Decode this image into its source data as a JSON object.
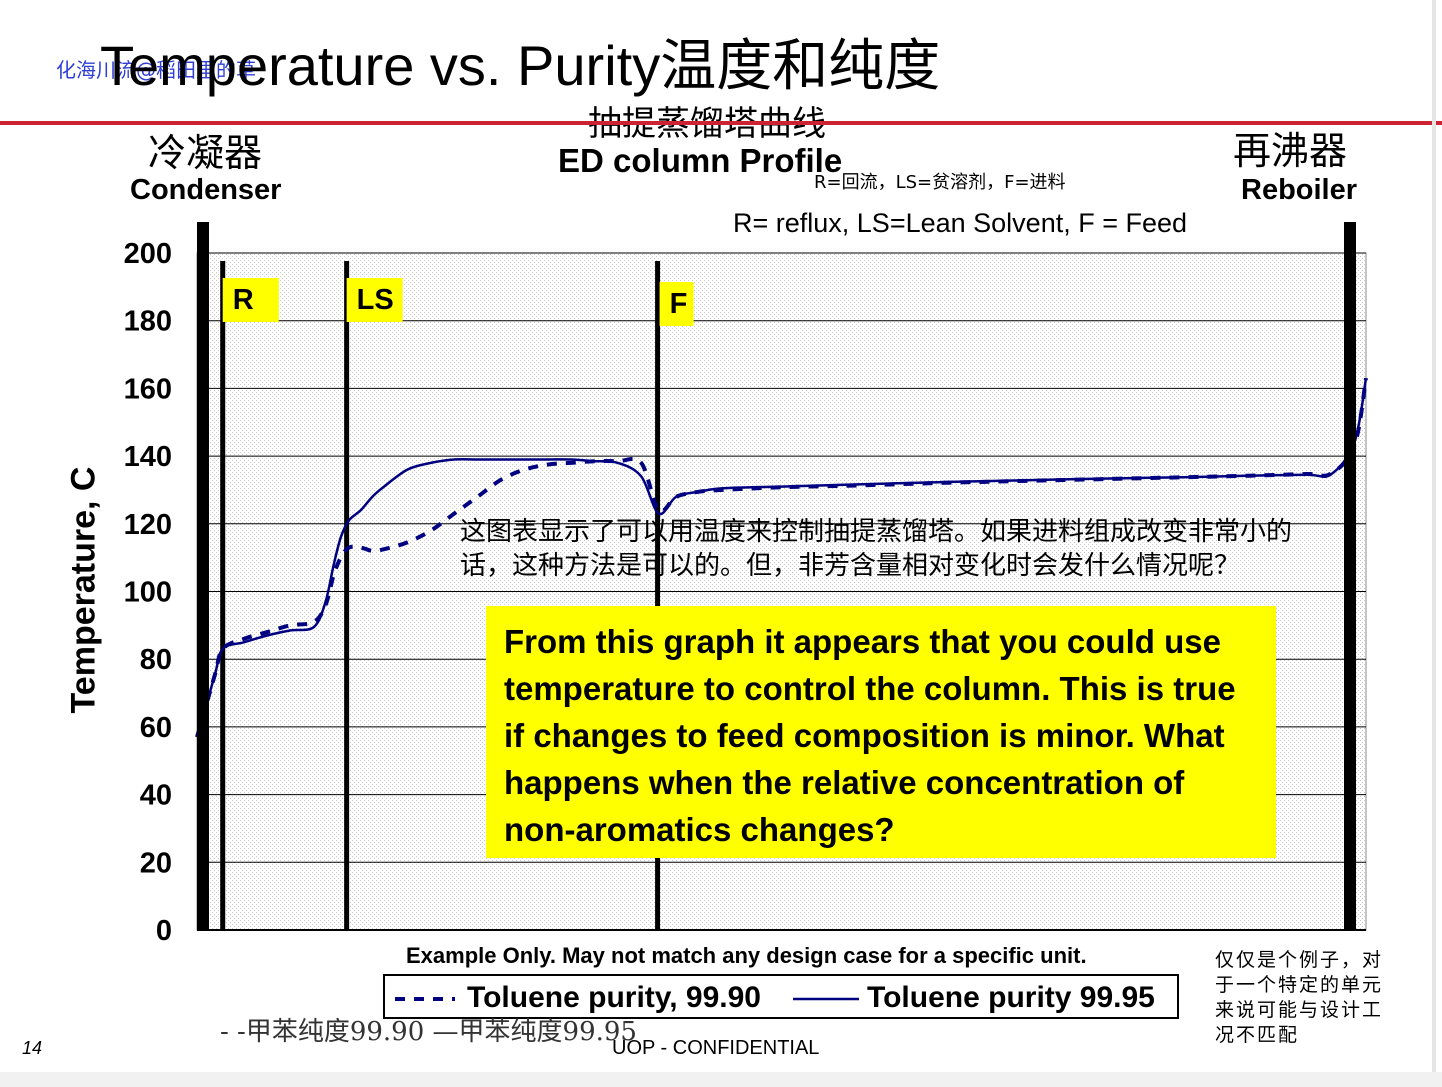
{
  "slide": {
    "watermark": "化海川流@稻田里的草",
    "title": "Temperature vs. Purity温度和纯度",
    "title_cn": "抽提蒸馏塔曲线",
    "page_number": "14",
    "confidential": "UOP - CONFIDENTIAL",
    "accent_color": "#cc2233"
  },
  "annotations": {
    "condenser_cn": "冷凝器",
    "condenser": "Condenser",
    "reboiler_cn": "再沸器",
    "reboiler": "Reboiler",
    "abbr_cn": "R=回流，LS=贫溶剂，F=进料",
    "abbr_en": "R= reflux, LS=Lean Solvent, F = Feed",
    "note_cn": "这图表显示了可以用温度来控制抽提蒸馏塔。如果进料组成改变非常小的话，这种方法是可以的。但，非芳含量相对变化时会发什么情况呢？",
    "callout": "From this graph it appears that you could use temperature to control the column. This is true if changes to feed composition is minor. What happens when the relative concentration of non-aromatics changes?",
    "callout_color": "#ffff00",
    "example": "Example Only. May not match any design case for a specific unit.",
    "legend_cn": "- -甲苯纯度99.90 —甲苯纯度99.95",
    "side_note": "仅仅是个例子，对于一个特定的单元来说可能与设计工况不匹配"
  },
  "chart_data": {
    "type": "line",
    "title": "ED column Profile",
    "ylabel": "Temperature, C",
    "xlabel": "",
    "ylim": [
      0,
      200
    ],
    "yticks": [
      0,
      20,
      40,
      60,
      80,
      100,
      120,
      140,
      160,
      180,
      200
    ],
    "xlim": [
      0,
      100
    ],
    "grid": "horizontal",
    "legend_position": "bottom",
    "line_color": "#000080",
    "markers": [
      {
        "label": "R",
        "x": 2.2
      },
      {
        "label": "LS",
        "x": 12.8
      },
      {
        "label": "F",
        "x": 39.4
      }
    ],
    "series": [
      {
        "name": "Toluene purity, 99.90",
        "style": "dashed",
        "x": [
          0,
          1.5,
          2.2,
          4,
          6,
          8,
          10,
          11,
          11.7,
          12.3,
          13,
          14,
          15,
          16,
          18,
          20,
          22,
          24,
          26,
          28,
          30,
          32,
          34,
          36,
          38,
          39.5,
          41,
          43,
          45,
          50,
          55,
          60,
          65,
          70,
          75,
          80,
          85,
          90,
          95,
          97,
          99,
          100
        ],
        "y": [
          57,
          75,
          83,
          86,
          88,
          90,
          91,
          96,
          105,
          110,
          113,
          113,
          112,
          112.5,
          114.5,
          118,
          123,
          128,
          133,
          136,
          137.5,
          138,
          138.5,
          138.5,
          138,
          124,
          128,
          129.5,
          130,
          130.8,
          131.2,
          131.7,
          132.2,
          132.6,
          133,
          133.4,
          133.8,
          134.2,
          134.7,
          134.8,
          143,
          163
        ]
      },
      {
        "name": "Toluene purity 99.95",
        "style": "solid",
        "x": [
          0,
          1.5,
          2.2,
          4,
          6,
          8,
          10,
          11,
          11.7,
          12.3,
          13,
          14,
          15,
          16,
          18,
          20,
          22,
          24,
          26,
          28,
          30,
          32,
          34,
          36,
          38,
          39.5,
          41,
          43,
          45,
          50,
          55,
          60,
          65,
          70,
          75,
          80,
          85,
          90,
          95,
          97,
          99,
          100
        ],
        "y": [
          57,
          75,
          83,
          85,
          87,
          88.5,
          89.5,
          97,
          108,
          116,
          121,
          124,
          128,
          131,
          136,
          138,
          139,
          139,
          139,
          139,
          139,
          139,
          138.5,
          138,
          134,
          123,
          128,
          129.5,
          130.5,
          131,
          131.5,
          132,
          132.4,
          132.8,
          133.2,
          133.5,
          133.8,
          134.2,
          134.5,
          134.6,
          144,
          163
        ]
      }
    ]
  }
}
